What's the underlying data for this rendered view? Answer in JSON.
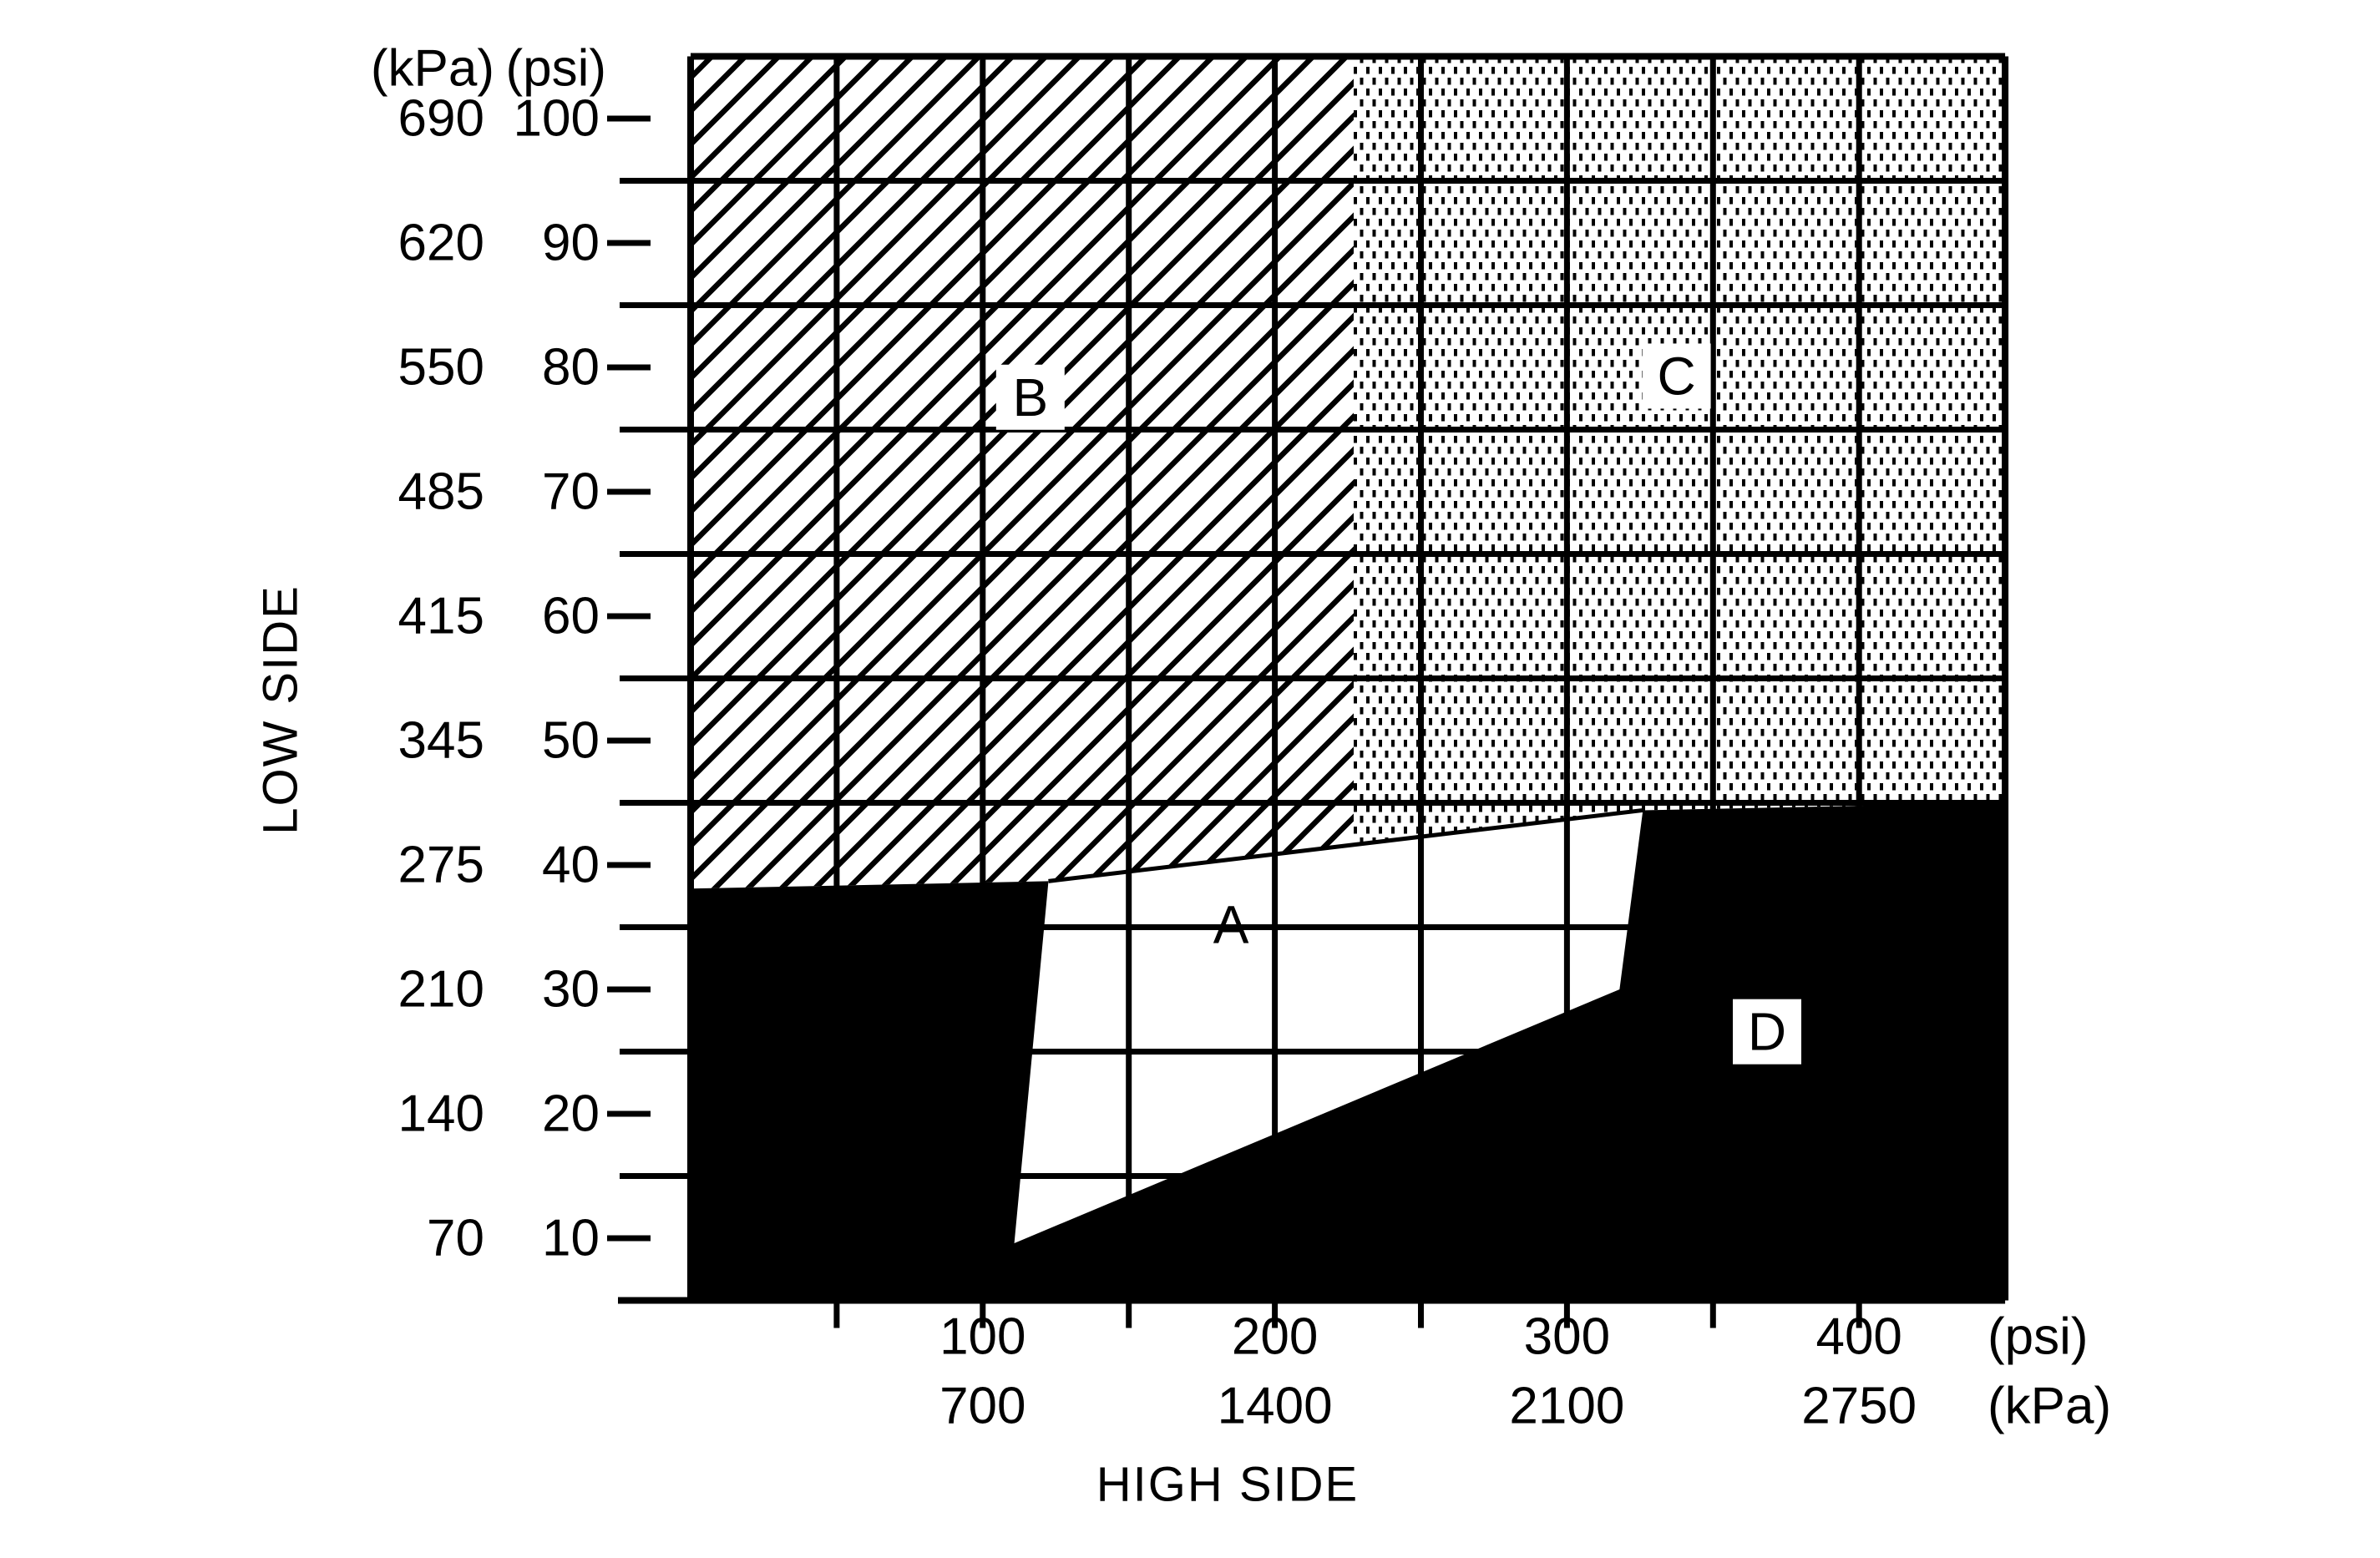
{
  "colors": {
    "ink": "#000000",
    "paper": "#ffffff"
  },
  "chart_data": {
    "type": "area",
    "title": "",
    "x_axis": {
      "title": "HIGH SIDE",
      "unit_primary": "(psi)",
      "unit_secondary": "(kPa)",
      "range_psi": [
        0,
        450
      ],
      "tick_interval_psi": 50,
      "labeled_ticks": [
        {
          "psi": "100",
          "kpa": "700"
        },
        {
          "psi": "200",
          "kpa": "1400"
        },
        {
          "psi": "300",
          "kpa": "2100"
        },
        {
          "psi": "400",
          "kpa": "2750"
        }
      ],
      "stub_ticks_psi": [
        50,
        100,
        150,
        200,
        250,
        300,
        350,
        400
      ]
    },
    "y_axis": {
      "title": "LOW SIDE",
      "header_kpa": "(kPa)",
      "header_psi": "(psi)",
      "range_psi": [
        5,
        105
      ],
      "labeled_ticks": [
        {
          "kpa": "690",
          "psi": "100",
          "value": 100
        },
        {
          "kpa": "620",
          "psi": "90",
          "value": 90
        },
        {
          "kpa": "550",
          "psi": "80",
          "value": 80
        },
        {
          "kpa": "485",
          "psi": "70",
          "value": 70
        },
        {
          "kpa": "415",
          "psi": "60",
          "value": 60
        },
        {
          "kpa": "345",
          "psi": "50",
          "value": 50
        },
        {
          "kpa": "275",
          "psi": "40",
          "value": 40
        },
        {
          "kpa": "210",
          "psi": "30",
          "value": 30
        },
        {
          "kpa": "140",
          "psi": "20",
          "value": 20
        },
        {
          "kpa": "70",
          "psi": "10",
          "value": 10
        }
      ],
      "gridline_psi": [
        15,
        25,
        35,
        45,
        55,
        65,
        75,
        85,
        95
      ]
    },
    "grid": {
      "vertical_psi": [
        50,
        100,
        150,
        200,
        250,
        300,
        350,
        400
      ],
      "on": true
    },
    "legend_position": "none",
    "regions": [
      {
        "id": "B",
        "label": "B",
        "fill": "hatch-diagonal",
        "label_pos_psi": [
          116.3,
          77.6
        ],
        "label_box": true,
        "polygon_psi": [
          [
            0,
            105
          ],
          [
            227,
            105
          ],
          [
            227,
            41.63
          ],
          [
            122.5,
            38.7
          ],
          [
            0,
            38.1
          ]
        ]
      },
      {
        "id": "C",
        "label": "C",
        "fill": "stipple-dots",
        "label_pos_psi": [
          337.5,
          79.3
        ],
        "label_box": true,
        "polygon_psi": [
          [
            227,
            105
          ],
          [
            450,
            105
          ],
          [
            450,
            45
          ],
          [
            326,
            44.4
          ],
          [
            227,
            41.63
          ]
        ]
      },
      {
        "id": "A",
        "label": "A",
        "fill": "white",
        "label_pos_psi": [
          185,
          35.2
        ],
        "label_box": false,
        "polygon_psi": [
          [
            122.5,
            38.7
          ],
          [
            326,
            44.4
          ],
          [
            318,
            30
          ],
          [
            110.8,
            9.6
          ]
        ]
      },
      {
        "id": "D",
        "label": "D",
        "fill": "black",
        "label_pos_psi": [
          368.5,
          26.6
        ],
        "label_box": true,
        "polygon_psi": [
          [
            0,
            38.1
          ],
          [
            122.5,
            38.7
          ],
          [
            110.8,
            9.6
          ],
          [
            318,
            30
          ],
          [
            326,
            44.4
          ],
          [
            450,
            45
          ],
          [
            450,
            5
          ],
          [
            0,
            5
          ]
        ]
      }
    ],
    "boundary_line_psi": [
      [
        122.5,
        38.7
      ],
      [
        326,
        44.4
      ]
    ]
  }
}
